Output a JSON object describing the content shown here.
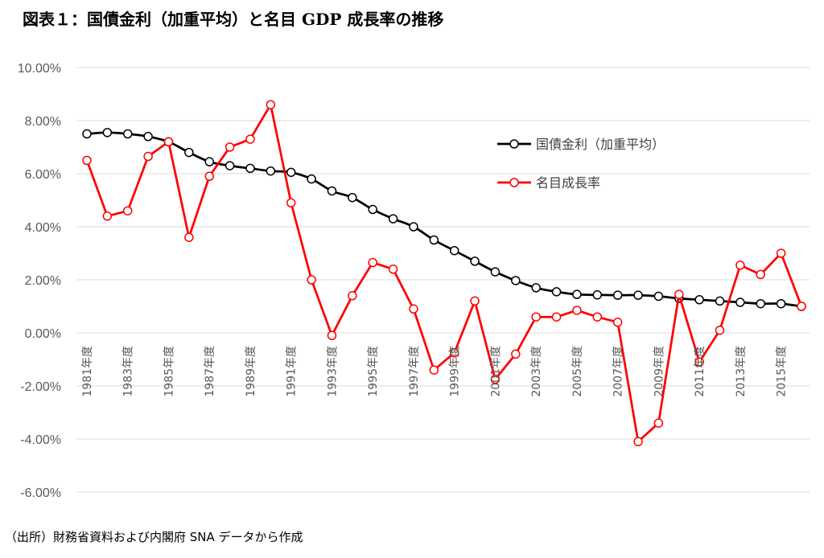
{
  "title": "図表１：国債金利（加重平均）と名目 GDP 成長率の推移",
  "source": "（出所）財務省資料および内閣府 SNA データから作成",
  "chart_data": {
    "type": "line",
    "title": "図表１：国債金利（加重平均）と名目 GDP 成長率の推移",
    "xlabel": "",
    "ylabel": "",
    "ylim": [
      -6,
      10
    ],
    "y_ticks": [
      "10.00%",
      "8.00%",
      "6.00%",
      "4.00%",
      "2.00%",
      "0.00%",
      "-2.00%",
      "-4.00%",
      "-6.00%"
    ],
    "y_tick_values": [
      10,
      8,
      6,
      4,
      2,
      0,
      -2,
      -4,
      -6
    ],
    "grid": true,
    "legend_position": "top-right",
    "x": [
      1981,
      1982,
      1983,
      1984,
      1985,
      1986,
      1987,
      1988,
      1989,
      1990,
      1991,
      1992,
      1993,
      1994,
      1995,
      1996,
      1997,
      1998,
      1999,
      2000,
      2001,
      2002,
      2003,
      2004,
      2005,
      2006,
      2007,
      2008,
      2009,
      2010,
      2011,
      2012,
      2013,
      2014,
      2015,
      2016
    ],
    "x_tick_labels": [
      "1981年度",
      "1983年度",
      "1985年度",
      "1987年度",
      "1989年度",
      "1991年度",
      "1993年度",
      "1995年度",
      "1997年度",
      "1999年度",
      "2001年度",
      "2003年度",
      "2005年度",
      "2007年度",
      "2009年度",
      "2011年度",
      "2013年度",
      "2015年度"
    ],
    "x_tick_years": [
      1981,
      1983,
      1985,
      1987,
      1989,
      1991,
      1993,
      1995,
      1997,
      1999,
      2001,
      2003,
      2005,
      2007,
      2009,
      2011,
      2013,
      2015
    ],
    "series": [
      {
        "name": "国債金利（加重平均）",
        "color": "#000000",
        "smooth": true,
        "values": [
          7.5,
          7.55,
          7.5,
          7.4,
          7.2,
          6.8,
          6.45,
          6.3,
          6.2,
          6.1,
          6.05,
          5.8,
          5.35,
          5.1,
          4.65,
          4.3,
          4.0,
          3.5,
          3.1,
          2.7,
          2.3,
          1.97,
          1.7,
          1.55,
          1.45,
          1.43,
          1.42,
          1.42,
          1.38,
          1.3,
          1.25,
          1.2,
          1.15,
          1.1,
          1.1,
          1.0
        ]
      },
      {
        "name": "名目成長率",
        "color": "#ff0000",
        "smooth": false,
        "values": [
          6.5,
          4.4,
          4.6,
          6.65,
          7.2,
          3.6,
          5.9,
          7.0,
          7.3,
          8.6,
          4.9,
          2.0,
          -0.1,
          1.4,
          2.65,
          2.4,
          0.9,
          -1.4,
          -0.75,
          1.2,
          -1.75,
          -0.8,
          0.6,
          0.6,
          0.85,
          0.6,
          0.4,
          -4.1,
          -3.4,
          1.45,
          -1.1,
          0.1,
          2.55,
          2.2,
          3.0,
          1.0
        ]
      }
    ]
  }
}
